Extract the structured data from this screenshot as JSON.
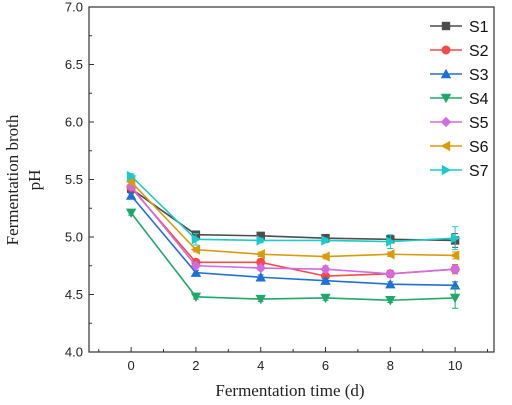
{
  "chart_data": {
    "type": "line",
    "title": "",
    "xlabel": "Fermentation time (d)",
    "ylabel_lines": [
      "Fermentation broth",
      "pH"
    ],
    "x": [
      0,
      2,
      4,
      6,
      8,
      10
    ],
    "xticks": [
      "0",
      "2",
      "4",
      "6",
      "8",
      "10"
    ],
    "xlim": [
      -1.3,
      11.2
    ],
    "ylim": [
      4.0,
      7.0
    ],
    "yticks": [
      "4.0",
      "4.5",
      "5.0",
      "5.5",
      "6.0",
      "6.5",
      "7.0"
    ],
    "grid": false,
    "legend_position": "top-right",
    "series": [
      {
        "name": "S1",
        "color": "#4d4d4d",
        "marker": "square",
        "values": [
          5.42,
          5.02,
          5.01,
          4.99,
          4.98,
          4.97
        ],
        "errors": [
          0.02,
          0.02,
          0.02,
          0.02,
          0.03,
          0.06
        ]
      },
      {
        "name": "S2",
        "color": "#f24b4b",
        "marker": "circle",
        "values": [
          5.43,
          4.78,
          4.78,
          4.66,
          4.68,
          4.72
        ],
        "errors": [
          0.02,
          0.02,
          0.03,
          0.04,
          0.03,
          0.04
        ]
      },
      {
        "name": "S3",
        "color": "#1f6fd6",
        "marker": "triangle-up",
        "values": [
          5.36,
          4.69,
          4.65,
          4.62,
          4.59,
          4.58
        ],
        "errors": [
          0.02,
          0.02,
          0.02,
          0.02,
          0.02,
          0.03
        ]
      },
      {
        "name": "S4",
        "color": "#1fa86a",
        "marker": "triangle-down",
        "values": [
          5.21,
          4.48,
          4.46,
          4.47,
          4.45,
          4.47
        ],
        "errors": [
          0.02,
          0.02,
          0.02,
          0.02,
          0.02,
          0.09
        ]
      },
      {
        "name": "S5",
        "color": "#d36be0",
        "marker": "diamond",
        "values": [
          5.44,
          4.75,
          4.73,
          4.72,
          4.68,
          4.72
        ],
        "errors": [
          0.02,
          0.02,
          0.02,
          0.03,
          0.02,
          0.03
        ]
      },
      {
        "name": "S6",
        "color": "#d99a0b",
        "marker": "triangle-left",
        "values": [
          5.48,
          4.89,
          4.85,
          4.83,
          4.85,
          4.84
        ],
        "errors": [
          0.02,
          0.02,
          0.02,
          0.02,
          0.02,
          0.03
        ]
      },
      {
        "name": "S7",
        "color": "#1fc9c9",
        "marker": "triangle-right",
        "values": [
          5.53,
          4.98,
          4.97,
          4.97,
          4.96,
          4.99
        ],
        "errors": [
          0.02,
          0.05,
          0.02,
          0.02,
          0.06,
          0.1
        ]
      }
    ]
  }
}
